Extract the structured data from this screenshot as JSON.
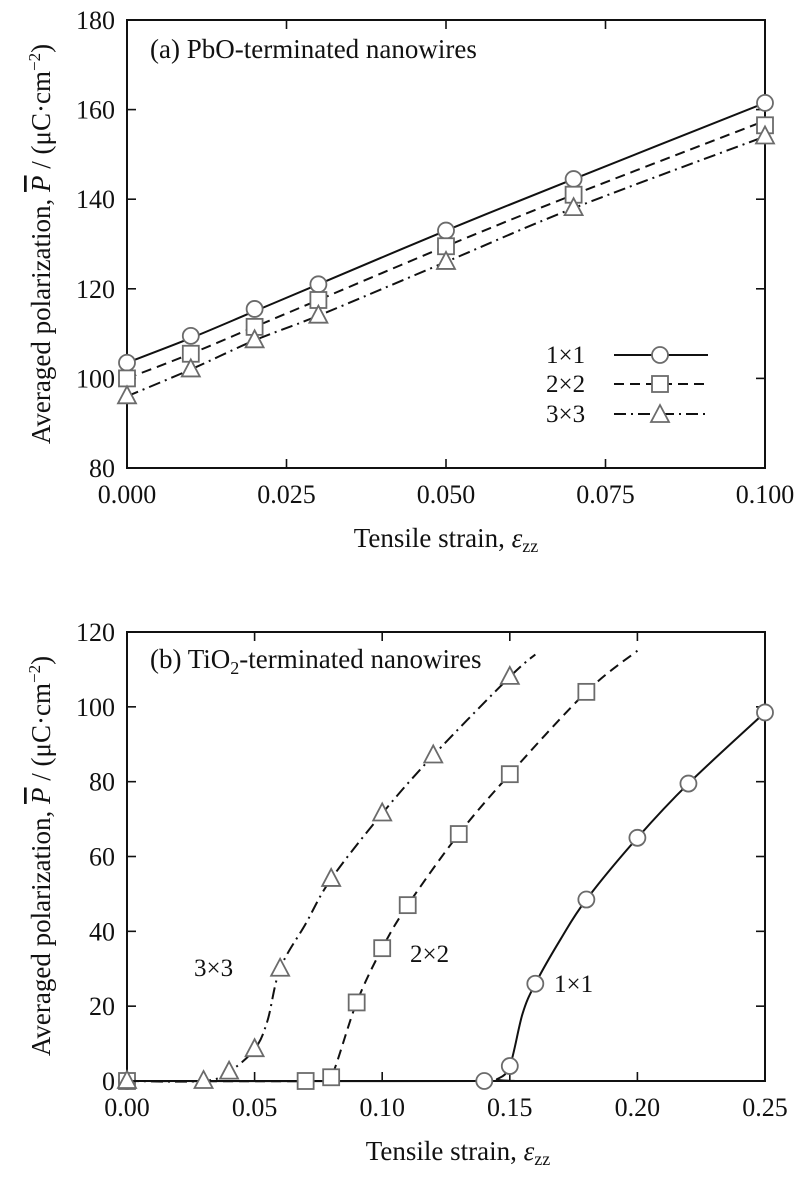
{
  "chart_data": [
    {
      "type": "line",
      "title_prefix": "(a) ",
      "title_main": "PbO-terminated nanowires",
      "title_sub": "",
      "title_rest": "",
      "xlabel_main": "Tensile strain, ",
      "xlabel_symbol": "ε",
      "xlabel_sub": "zz",
      "ylabel_main": "Averaged polarization, ",
      "ylabel_symbol": "P",
      "ylabel_unit_open": " / (μC·cm",
      "ylabel_unit_sup": "−2",
      "ylabel_unit_close": ")",
      "xlim": [
        0.0,
        0.1
      ],
      "ylim": [
        80,
        180
      ],
      "xticks": [
        0.0,
        0.025,
        0.05,
        0.075,
        0.1
      ],
      "xtick_labels": [
        "0.000",
        "0.025",
        "0.050",
        "0.075",
        "0.100"
      ],
      "yticks": [
        80,
        100,
        120,
        140,
        160,
        180
      ],
      "ytick_labels": [
        "80",
        "100",
        "120",
        "140",
        "160",
        "180"
      ],
      "grid": false,
      "legend_position": "right",
      "series": [
        {
          "name": "1×1",
          "marker": "circle",
          "dash": "solid",
          "points": [
            [
              0.0,
              103.5
            ],
            [
              0.01,
              109.5
            ],
            [
              0.02,
              115.5
            ],
            [
              0.03,
              121.0
            ],
            [
              0.05,
              133.0
            ],
            [
              0.07,
              144.5
            ],
            [
              0.1,
              161.5
            ]
          ],
          "curve": [
            [
              0.0,
              103.5
            ],
            [
              0.01,
              109.0
            ],
            [
              0.02,
              115.0
            ],
            [
              0.03,
              121.0
            ],
            [
              0.05,
              133.0
            ],
            [
              0.07,
              144.5
            ],
            [
              0.1,
              161.5
            ]
          ]
        },
        {
          "name": "2×2",
          "marker": "square",
          "dash": "dashed",
          "points": [
            [
              0.0,
              100.0
            ],
            [
              0.01,
              105.5
            ],
            [
              0.02,
              111.5
            ],
            [
              0.03,
              117.5
            ],
            [
              0.05,
              129.5
            ],
            [
              0.07,
              141.0
            ],
            [
              0.1,
              156.5
            ]
          ],
          "curve": [
            [
              0.0,
              100.0
            ],
            [
              0.01,
              105.5
            ],
            [
              0.02,
              111.5
            ],
            [
              0.03,
              117.5
            ],
            [
              0.05,
              129.5
            ],
            [
              0.07,
              141.0
            ],
            [
              0.1,
              157.5
            ]
          ]
        },
        {
          "name": "3×3",
          "marker": "triangle",
          "dash": "dashdot",
          "points": [
            [
              0.0,
              96.0
            ],
            [
              0.01,
              102.0
            ],
            [
              0.02,
              108.5
            ],
            [
              0.03,
              114.0
            ],
            [
              0.05,
              126.0
            ],
            [
              0.07,
              138.0
            ],
            [
              0.1,
              154.0
            ]
          ],
          "curve": [
            [
              0.0,
              96.0
            ],
            [
              0.01,
              102.0
            ],
            [
              0.02,
              108.5
            ],
            [
              0.03,
              114.0
            ],
            [
              0.05,
              126.0
            ],
            [
              0.07,
              138.0
            ],
            [
              0.1,
              154.0
            ]
          ]
        }
      ]
    },
    {
      "type": "line",
      "title_prefix": "(b) ",
      "title_main": "TiO",
      "title_sub": "2",
      "title_rest": "-terminated nanowires",
      "xlabel_main": "Tensile strain, ",
      "xlabel_symbol": "ε",
      "xlabel_sub": "zz",
      "ylabel_main": "Averaged polarization, ",
      "ylabel_symbol": "P",
      "ylabel_unit_open": " / (μC·cm",
      "ylabel_unit_sup": "−2",
      "ylabel_unit_close": ")",
      "xlim": [
        0.0,
        0.25
      ],
      "ylim": [
        0,
        120
      ],
      "xticks": [
        0.0,
        0.05,
        0.1,
        0.15,
        0.2,
        0.25
      ],
      "xtick_labels": [
        "0.00",
        "0.05",
        "0.10",
        "0.15",
        "0.20",
        "0.25"
      ],
      "yticks": [
        0,
        20,
        40,
        60,
        80,
        100,
        120
      ],
      "ytick_labels": [
        "0",
        "20",
        "40",
        "60",
        "80",
        "100",
        "120"
      ],
      "grid": false,
      "legend_position": "none",
      "series": [
        {
          "name": "1×1",
          "marker": "circle",
          "dash": "solid",
          "points": [
            [
              0.0,
              0.0
            ],
            [
              0.14,
              0.0
            ],
            [
              0.15,
              4.0
            ],
            [
              0.16,
              26.0
            ],
            [
              0.18,
              48.5
            ],
            [
              0.2,
              65.0
            ],
            [
              0.22,
              79.5
            ],
            [
              0.25,
              98.5
            ]
          ],
          "curve": [
            [
              0.0,
              0.0
            ],
            [
              0.14,
              0.0
            ],
            [
              0.145,
              0.5
            ],
            [
              0.15,
              4.0
            ],
            [
              0.155,
              18.0
            ],
            [
              0.16,
              26.0
            ],
            [
              0.17,
              38.0
            ],
            [
              0.18,
              48.5
            ],
            [
              0.2,
              65.0
            ],
            [
              0.22,
              79.5
            ],
            [
              0.25,
              98.5
            ]
          ]
        },
        {
          "name": "2×2",
          "marker": "square",
          "dash": "dashed",
          "points": [
            [
              0.0,
              0.0
            ],
            [
              0.07,
              0.0
            ],
            [
              0.08,
              1.0
            ],
            [
              0.09,
              21.0
            ],
            [
              0.1,
              35.5
            ],
            [
              0.11,
              47.0
            ],
            [
              0.13,
              66.0
            ],
            [
              0.15,
              82.0
            ],
            [
              0.18,
              104.0
            ]
          ],
          "curve": [
            [
              0.0,
              0.0
            ],
            [
              0.075,
              0.0
            ],
            [
              0.08,
              1.0
            ],
            [
              0.09,
              21.0
            ],
            [
              0.1,
              35.5
            ],
            [
              0.11,
              47.0
            ],
            [
              0.13,
              66.0
            ],
            [
              0.15,
              82.0
            ],
            [
              0.18,
              104.0
            ],
            [
              0.2,
              115.0
            ]
          ]
        },
        {
          "name": "3×3",
          "marker": "triangle",
          "dash": "dashdot",
          "points": [
            [
              0.0,
              0.0
            ],
            [
              0.03,
              0.0
            ],
            [
              0.04,
              2.5
            ],
            [
              0.05,
              8.5
            ],
            [
              0.06,
              30.0
            ],
            [
              0.08,
              54.0
            ],
            [
              0.1,
              71.5
            ],
            [
              0.12,
              87.0
            ],
            [
              0.15,
              108.0
            ]
          ],
          "curve": [
            [
              0.0,
              0.0
            ],
            [
              0.03,
              0.0
            ],
            [
              0.04,
              2.5
            ],
            [
              0.05,
              8.5
            ],
            [
              0.055,
              16.0
            ],
            [
              0.06,
              30.0
            ],
            [
              0.07,
              42.0
            ],
            [
              0.08,
              54.0
            ],
            [
              0.1,
              71.5
            ],
            [
              0.12,
              87.0
            ],
            [
              0.15,
              108.0
            ],
            [
              0.16,
              114.0
            ]
          ]
        }
      ],
      "curve_labels": [
        {
          "series": "3×3",
          "text": "3×3"
        },
        {
          "series": "2×2",
          "text": "2×2"
        },
        {
          "series": "1×1",
          "text": "1×1"
        }
      ]
    }
  ]
}
